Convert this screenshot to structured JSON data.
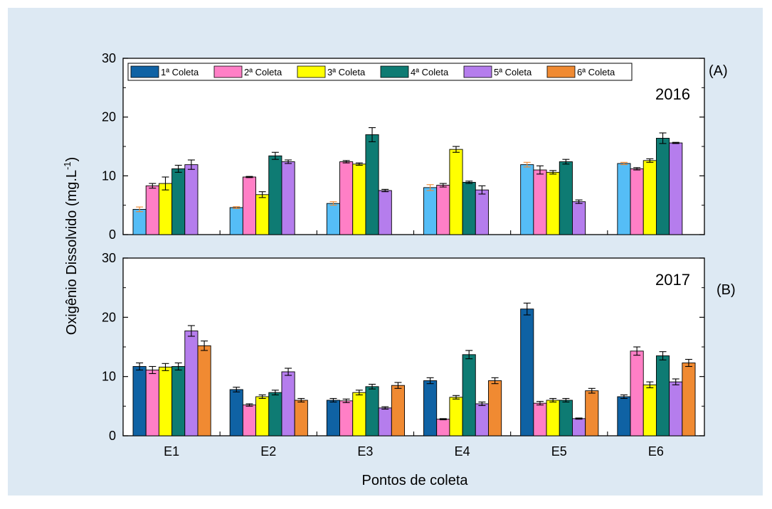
{
  "background_color": "#dde9f3",
  "chart_data": {
    "type": "bar",
    "ylabel": "Oxigênio Dissolvido (mg.L",
    "ylabel_sup": "-1",
    "ylabel_close": ")",
    "xlabel": "Pontos de coleta",
    "categories": [
      "E1",
      "E2",
      "E3",
      "E4",
      "E5",
      "E6"
    ],
    "ylim": [
      0,
      30
    ],
    "yticks": [
      "0",
      "10",
      "20",
      "30"
    ],
    "legend_position": "top-left",
    "series_names": [
      "1ª Coleta",
      "2ª Coleta",
      "3ª Coleta",
      "4ª Coleta",
      "5ª Coleta",
      "6ª Coleta"
    ],
    "colors": [
      "#0f62a4",
      "#ff7fc6",
      "#ffff00",
      "#0e7b73",
      "#b57ded",
      "#f08a32"
    ],
    "panels": [
      {
        "tag": "(A)",
        "year": "2016",
        "first_series_color": "#55bdf6",
        "first_series_error_color": "#f08a32",
        "series": [
          {
            "name": "1ª Coleta",
            "values": [
              4.3,
              4.6,
              5.3,
              8.0,
              11.9,
              12.1
            ],
            "errors": [
              0.4,
              0.15,
              0.3,
              0.5,
              0.4,
              0.2
            ]
          },
          {
            "name": "2ª Coleta",
            "values": [
              8.3,
              9.8,
              12.4,
              8.4,
              11.0,
              11.2
            ],
            "errors": [
              0.4,
              0.1,
              0.2,
              0.3,
              0.7,
              0.2
            ]
          },
          {
            "name": "3ª Coleta",
            "values": [
              8.7,
              6.8,
              12.0,
              14.5,
              10.6,
              12.6
            ],
            "errors": [
              1.1,
              0.5,
              0.2,
              0.5,
              0.3,
              0.3
            ]
          },
          {
            "name": "4ª Coleta",
            "values": [
              11.2,
              13.4,
              17.0,
              8.9,
              12.4,
              16.4
            ],
            "errors": [
              0.6,
              0.6,
              1.2,
              0.2,
              0.4,
              0.9
            ]
          },
          {
            "name": "5ª Coleta",
            "values": [
              11.9,
              12.4,
              7.5,
              7.6,
              5.6,
              15.6
            ],
            "errors": [
              0.8,
              0.3,
              0.2,
              0.7,
              0.3,
              0.1
            ]
          },
          {
            "name": "6ª Coleta",
            "values": [
              null,
              null,
              null,
              null,
              null,
              null
            ],
            "errors": [
              null,
              null,
              null,
              null,
              null,
              null
            ]
          }
        ]
      },
      {
        "tag": "(B)",
        "year": "2017",
        "series": [
          {
            "name": "1ª Coleta",
            "values": [
              11.7,
              7.8,
              6.0,
              9.3,
              21.4,
              6.6
            ],
            "errors": [
              0.6,
              0.4,
              0.3,
              0.5,
              1.0,
              0.3
            ]
          },
          {
            "name": "2ª Coleta",
            "values": [
              11.1,
              5.2,
              5.9,
              2.8,
              5.5,
              14.3
            ],
            "errors": [
              0.6,
              0.2,
              0.3,
              0.1,
              0.3,
              0.7
            ]
          },
          {
            "name": "3ª Coleta",
            "values": [
              11.6,
              6.6,
              7.3,
              6.5,
              6.0,
              8.6
            ],
            "errors": [
              0.6,
              0.3,
              0.4,
              0.3,
              0.3,
              0.5
            ]
          },
          {
            "name": "4ª Coleta",
            "values": [
              11.7,
              7.3,
              8.3,
              13.7,
              6.0,
              13.5
            ],
            "errors": [
              0.6,
              0.4,
              0.4,
              0.7,
              0.3,
              0.7
            ]
          },
          {
            "name": "5ª Coleta",
            "values": [
              17.7,
              10.8,
              4.7,
              5.4,
              2.9,
              9.1
            ],
            "errors": [
              0.9,
              0.6,
              0.2,
              0.3,
              0.1,
              0.5
            ]
          },
          {
            "name": "6ª Coleta",
            "values": [
              15.2,
              6.0,
              8.5,
              9.3,
              7.6,
              12.3
            ],
            "errors": [
              0.8,
              0.3,
              0.5,
              0.5,
              0.4,
              0.6
            ]
          }
        ]
      }
    ]
  }
}
